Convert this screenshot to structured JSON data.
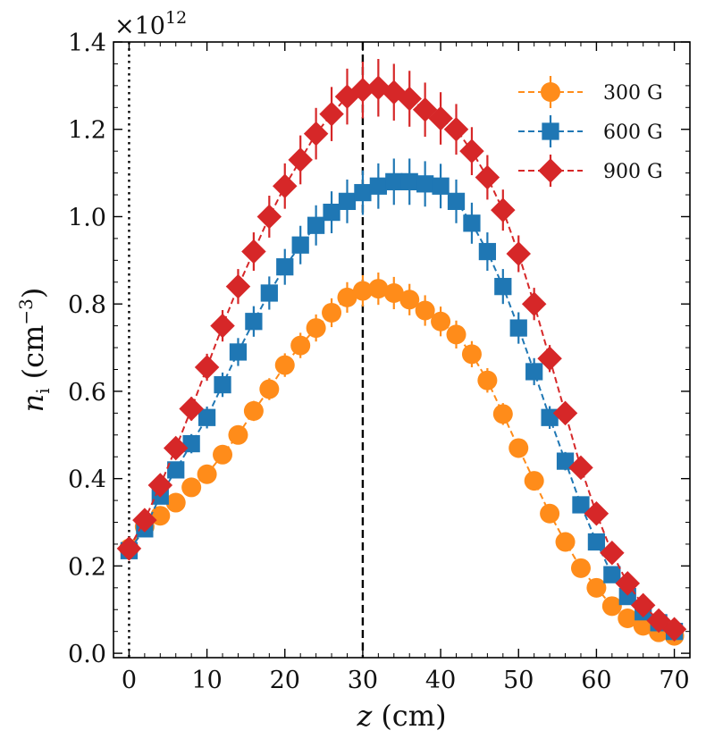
{
  "chart_data": {
    "type": "line",
    "title": "",
    "xlabel": "z (cm)",
    "ylabel": "n_i (cm^-3)",
    "ylabel_parts": {
      "symbol": "n",
      "subscript": "i",
      "unit_open": "(cm",
      "unit_exp": "−3",
      "unit_close": ")"
    },
    "xlabel_parts": {
      "symbol": "z",
      "unit": "(cm)"
    },
    "y_multiplier": "×10",
    "y_multiplier_exp": "12",
    "xlim": [
      -2,
      72
    ],
    "ylim": [
      -0.01,
      1.4
    ],
    "xticks": [
      0,
      10,
      20,
      30,
      40,
      50,
      60,
      70
    ],
    "xtick_labels": [
      "0",
      "10",
      "20",
      "30",
      "40",
      "50",
      "60",
      "70"
    ],
    "yticks": [
      0.0,
      0.2,
      0.4,
      0.6,
      0.8,
      1.0,
      1.2,
      1.4
    ],
    "ytick_labels": [
      "0.0",
      "0.2",
      "0.4",
      "0.6",
      "0.8",
      "1.0",
      "1.2",
      "1.4"
    ],
    "legend_position": "top-right",
    "vlines": [
      {
        "x": 0,
        "style": "dotted",
        "color": "#000000"
      },
      {
        "x": 30,
        "style": "dashed",
        "color": "#000000"
      }
    ],
    "x": [
      0,
      2,
      4,
      6,
      8,
      10,
      12,
      14,
      16,
      18,
      20,
      22,
      24,
      26,
      28,
      30,
      32,
      34,
      36,
      38,
      40,
      42,
      44,
      46,
      48,
      50,
      52,
      54,
      56,
      58,
      60,
      62,
      64,
      66,
      68,
      70
    ],
    "series": [
      {
        "name": "300 G",
        "marker": "circle",
        "color": "#ff8c1a",
        "values": [
          0.24,
          0.29,
          0.315,
          0.345,
          0.38,
          0.41,
          0.455,
          0.5,
          0.555,
          0.605,
          0.66,
          0.705,
          0.745,
          0.78,
          0.815,
          0.83,
          0.835,
          0.825,
          0.81,
          0.785,
          0.76,
          0.73,
          0.685,
          0.625,
          0.548,
          0.47,
          0.395,
          0.32,
          0.255,
          0.195,
          0.15,
          0.108,
          0.08,
          0.063,
          0.048,
          0.04
        ],
        "errors": [
          0.01,
          0.012,
          0.013,
          0.014,
          0.015,
          0.017,
          0.019,
          0.021,
          0.023,
          0.025,
          0.027,
          0.029,
          0.031,
          0.033,
          0.035,
          0.036,
          0.037,
          0.037,
          0.036,
          0.035,
          0.034,
          0.032,
          0.03,
          0.028,
          0.025,
          0.022,
          0.019,
          0.016,
          0.013,
          0.01,
          0.008,
          0.006,
          0.005,
          0.004,
          0.004,
          0.003
        ]
      },
      {
        "name": "600 G",
        "marker": "square",
        "color": "#1f77b4",
        "values": [
          0.235,
          0.285,
          0.36,
          0.42,
          0.48,
          0.54,
          0.615,
          0.69,
          0.76,
          0.825,
          0.885,
          0.935,
          0.98,
          1.01,
          1.035,
          1.055,
          1.07,
          1.08,
          1.08,
          1.075,
          1.07,
          1.035,
          0.985,
          0.92,
          0.84,
          0.745,
          0.645,
          0.54,
          0.44,
          0.34,
          0.255,
          0.18,
          0.13,
          0.095,
          0.07,
          0.05
        ],
        "errors": [
          0.01,
          0.013,
          0.016,
          0.019,
          0.022,
          0.025,
          0.028,
          0.032,
          0.035,
          0.038,
          0.041,
          0.044,
          0.046,
          0.048,
          0.05,
          0.051,
          0.052,
          0.053,
          0.053,
          0.052,
          0.051,
          0.05,
          0.047,
          0.044,
          0.04,
          0.036,
          0.031,
          0.026,
          0.021,
          0.016,
          0.012,
          0.009,
          0.007,
          0.005,
          0.004,
          0.003
        ]
      },
      {
        "name": "900 G",
        "marker": "diamond",
        "color": "#d62728",
        "values": [
          0.24,
          0.305,
          0.385,
          0.47,
          0.56,
          0.655,
          0.75,
          0.84,
          0.92,
          1.0,
          1.07,
          1.13,
          1.19,
          1.235,
          1.275,
          1.29,
          1.295,
          1.285,
          1.27,
          1.245,
          1.225,
          1.2,
          1.15,
          1.09,
          1.015,
          0.915,
          0.8,
          0.675,
          0.55,
          0.425,
          0.32,
          0.23,
          0.16,
          0.11,
          0.075,
          0.055
        ],
        "errors": [
          0.012,
          0.015,
          0.019,
          0.023,
          0.027,
          0.031,
          0.036,
          0.04,
          0.044,
          0.048,
          0.052,
          0.056,
          0.059,
          0.062,
          0.064,
          0.065,
          0.066,
          0.065,
          0.064,
          0.062,
          0.06,
          0.058,
          0.055,
          0.051,
          0.047,
          0.042,
          0.037,
          0.031,
          0.025,
          0.019,
          0.014,
          0.01,
          0.008,
          0.006,
          0.005,
          0.004
        ]
      }
    ]
  }
}
